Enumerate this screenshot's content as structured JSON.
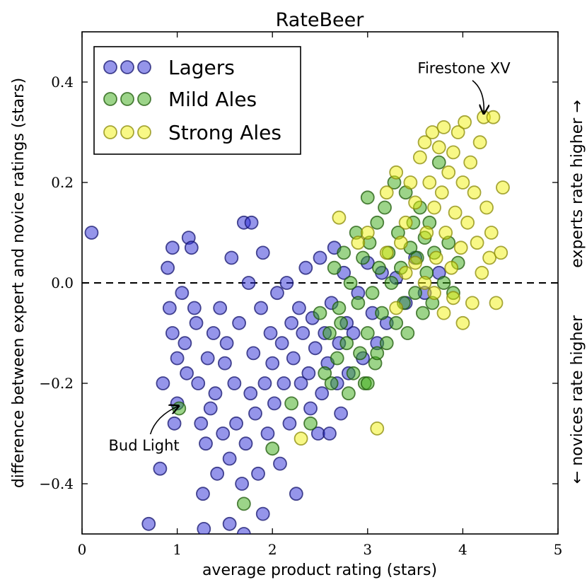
{
  "chart_data": {
    "type": "scatter",
    "title": "RateBeer",
    "xlabel": "average product rating (stars)",
    "ylabel": "difference between expert and novice ratings (stars)",
    "xlim": [
      0,
      5
    ],
    "ylim": [
      -0.5,
      0.5
    ],
    "xticks": [
      0,
      1,
      2,
      3,
      4,
      5
    ],
    "xtick_labels": [
      "0",
      "1",
      "2",
      "3",
      "4",
      "5"
    ],
    "yticks": [
      -0.4,
      -0.2,
      0.0,
      0.2,
      0.4
    ],
    "ytick_labels": [
      "−0.4",
      "−0.2",
      "0.0",
      "0.2",
      "0.4"
    ],
    "reference_line": {
      "y": 0.0,
      "style": "dashed"
    },
    "legend_position": "top-left",
    "right_labels": {
      "upper": "experts rate higher →",
      "lower": "← novices rate higher"
    },
    "annotations": [
      {
        "text": "Firestone XV",
        "point": [
          4.22,
          0.33
        ]
      },
      {
        "text": "Bud Light",
        "point": [
          1.0,
          -0.245
        ]
      }
    ],
    "series": [
      {
        "name": "Lagers",
        "color": "#2b2bd6",
        "edge": "#14146e",
        "points": [
          [
            0.1,
            0.1
          ],
          [
            0.7,
            -0.48
          ],
          [
            0.82,
            -0.37
          ],
          [
            0.85,
            -0.2
          ],
          [
            0.9,
            0.03
          ],
          [
            0.92,
            -0.05
          ],
          [
            0.95,
            0.07
          ],
          [
            0.95,
            -0.1
          ],
          [
            0.97,
            -0.28
          ],
          [
            1.0,
            -0.24
          ],
          [
            1.0,
            -0.15
          ],
          [
            1.05,
            -0.02
          ],
          [
            1.08,
            -0.12
          ],
          [
            1.1,
            -0.18
          ],
          [
            1.12,
            0.09
          ],
          [
            1.15,
            0.07
          ],
          [
            1.18,
            -0.05
          ],
          [
            1.2,
            -0.08
          ],
          [
            1.22,
            -0.2
          ],
          [
            1.25,
            -0.28
          ],
          [
            1.27,
            -0.42
          ],
          [
            1.28,
            -0.49
          ],
          [
            1.3,
            -0.32
          ],
          [
            1.32,
            -0.15
          ],
          [
            1.35,
            -0.25
          ],
          [
            1.38,
            -0.1
          ],
          [
            1.4,
            -0.22
          ],
          [
            1.42,
            -0.38
          ],
          [
            1.45,
            -0.05
          ],
          [
            1.48,
            -0.3
          ],
          [
            1.5,
            -0.16
          ],
          [
            1.52,
            -0.12
          ],
          [
            1.55,
            -0.35
          ],
          [
            1.55,
            -0.48
          ],
          [
            1.57,
            0.05
          ],
          [
            1.6,
            -0.2
          ],
          [
            1.62,
            -0.28
          ],
          [
            1.65,
            -0.08
          ],
          [
            1.68,
            -0.4
          ],
          [
            1.7,
            0.12
          ],
          [
            1.7,
            -0.5
          ],
          [
            1.72,
            -0.32
          ],
          [
            1.75,
            0.0
          ],
          [
            1.77,
            -0.22
          ],
          [
            1.78,
            0.12
          ],
          [
            1.8,
            -0.14
          ],
          [
            1.82,
            -0.26
          ],
          [
            1.85,
            -0.38
          ],
          [
            1.88,
            -0.05
          ],
          [
            1.9,
            -0.46
          ],
          [
            1.9,
            0.06
          ],
          [
            1.92,
            -0.2
          ],
          [
            1.95,
            -0.3
          ],
          [
            1.98,
            -0.1
          ],
          [
            2.0,
            -0.16
          ],
          [
            2.02,
            -0.24
          ],
          [
            2.05,
            -0.02
          ],
          [
            2.08,
            -0.36
          ],
          [
            2.1,
            -0.12
          ],
          [
            2.12,
            -0.2
          ],
          [
            2.15,
            0.0
          ],
          [
            2.18,
            -0.28
          ],
          [
            2.2,
            -0.08
          ],
          [
            2.22,
            -0.15
          ],
          [
            2.25,
            -0.42
          ],
          [
            2.28,
            -0.05
          ],
          [
            2.3,
            -0.2
          ],
          [
            2.32,
            -0.1
          ],
          [
            2.35,
            0.03
          ],
          [
            2.38,
            -0.18
          ],
          [
            2.4,
            -0.25
          ],
          [
            2.42,
            -0.07
          ],
          [
            2.45,
            -0.13
          ],
          [
            2.48,
            -0.3
          ],
          [
            2.5,
            0.05
          ],
          [
            2.52,
            -0.22
          ],
          [
            2.55,
            -0.1
          ],
          [
            2.58,
            -0.16
          ],
          [
            2.6,
            -0.3
          ],
          [
            2.62,
            -0.04
          ],
          [
            2.65,
            0.07
          ],
          [
            2.68,
            -0.2
          ],
          [
            2.7,
            -0.12
          ],
          [
            2.72,
            -0.26
          ],
          [
            2.75,
            0.02
          ],
          [
            2.78,
            -0.08
          ],
          [
            2.8,
            -0.18
          ],
          [
            2.85,
            -0.1
          ],
          [
            2.9,
            -0.02
          ],
          [
            2.95,
            -0.15
          ],
          [
            3.0,
            0.04
          ],
          [
            3.05,
            -0.06
          ],
          [
            3.1,
            -0.12
          ],
          [
            3.15,
            0.02
          ],
          [
            3.2,
            -0.08
          ],
          [
            3.3,
            0.01
          ],
          [
            3.4,
            -0.04
          ],
          [
            3.5,
            0.05
          ],
          [
            3.6,
            -0.02
          ],
          [
            3.75,
            0.02
          ]
        ]
      },
      {
        "name": "Mild Ales",
        "color": "#3aaa14",
        "edge": "#1d5a0a",
        "points": [
          [
            1.02,
            -0.25
          ],
          [
            1.7,
            -0.44
          ],
          [
            2.0,
            -0.33
          ],
          [
            2.2,
            -0.24
          ],
          [
            2.4,
            -0.28
          ],
          [
            2.5,
            -0.06
          ],
          [
            2.55,
            -0.18
          ],
          [
            2.6,
            -0.1
          ],
          [
            2.62,
            -0.2
          ],
          [
            2.65,
            0.03
          ],
          [
            2.68,
            -0.15
          ],
          [
            2.7,
            -0.05
          ],
          [
            2.72,
            -0.08
          ],
          [
            2.75,
            0.06
          ],
          [
            2.78,
            -0.12
          ],
          [
            2.8,
            -0.22
          ],
          [
            2.82,
            0.0
          ],
          [
            2.85,
            -0.18
          ],
          [
            2.88,
            0.1
          ],
          [
            2.9,
            -0.04
          ],
          [
            2.92,
            -0.14
          ],
          [
            2.95,
            0.05
          ],
          [
            2.97,
            -0.2
          ],
          [
            3.0,
            0.17
          ],
          [
            3.0,
            -0.1
          ],
          [
            3.02,
            0.08
          ],
          [
            3.05,
            -0.02
          ],
          [
            3.08,
            -0.16
          ],
          [
            3.1,
            0.12
          ],
          [
            3.12,
            0.03
          ],
          [
            3.15,
            -0.06
          ],
          [
            3.18,
            0.15
          ],
          [
            3.2,
            -0.12
          ],
          [
            3.22,
            0.06
          ],
          [
            3.25,
            0.0
          ],
          [
            3.28,
            0.2
          ],
          [
            3.3,
            -0.08
          ],
          [
            3.32,
            0.1
          ],
          [
            3.35,
            0.03
          ],
          [
            3.38,
            -0.04
          ],
          [
            3.4,
            0.18
          ],
          [
            3.42,
            -0.1
          ],
          [
            3.45,
            0.07
          ],
          [
            3.48,
            0.12
          ],
          [
            3.5,
            -0.02
          ],
          [
            3.52,
            0.05
          ],
          [
            3.55,
            0.15
          ],
          [
            3.58,
            -0.06
          ],
          [
            3.6,
            0.09
          ],
          [
            3.62,
            0.02
          ],
          [
            3.65,
            0.12
          ],
          [
            3.68,
            -0.04
          ],
          [
            3.7,
            0.06
          ],
          [
            3.75,
            0.24
          ],
          [
            3.8,
            0.0
          ],
          [
            3.85,
            0.08
          ],
          [
            3.9,
            -0.02
          ],
          [
            3.95,
            0.04
          ],
          [
            3.0,
            -0.2
          ],
          [
            3.1,
            -0.14
          ]
        ]
      },
      {
        "name": "Strong Ales",
        "color": "#f2f20e",
        "edge": "#8a8a08",
        "points": [
          [
            2.7,
            0.13
          ],
          [
            3.1,
            -0.29
          ],
          [
            2.3,
            -0.31
          ],
          [
            3.2,
            0.18
          ],
          [
            3.3,
            0.22
          ],
          [
            3.35,
            0.08
          ],
          [
            3.4,
            0.12
          ],
          [
            3.45,
            0.2
          ],
          [
            3.5,
            0.16
          ],
          [
            3.55,
            0.25
          ],
          [
            3.6,
            0.28
          ],
          [
            3.62,
            0.1
          ],
          [
            3.65,
            0.2
          ],
          [
            3.68,
            0.3
          ],
          [
            3.7,
            0.15
          ],
          [
            3.72,
            0.05
          ],
          [
            3.75,
            0.27
          ],
          [
            3.78,
            0.18
          ],
          [
            3.8,
            0.31
          ],
          [
            3.82,
            0.1
          ],
          [
            3.85,
            0.22
          ],
          [
            3.88,
            0.03
          ],
          [
            3.9,
            0.26
          ],
          [
            3.92,
            0.14
          ],
          [
            3.95,
            0.3
          ],
          [
            3.98,
            0.07
          ],
          [
            4.0,
            0.2
          ],
          [
            4.02,
            0.32
          ],
          [
            4.05,
            0.12
          ],
          [
            4.08,
            0.24
          ],
          [
            4.1,
            -0.04
          ],
          [
            4.12,
            0.18
          ],
          [
            4.15,
            0.08
          ],
          [
            4.18,
            0.28
          ],
          [
            4.2,
            0.02
          ],
          [
            4.22,
            0.33
          ],
          [
            4.25,
            0.15
          ],
          [
            4.28,
            0.05
          ],
          [
            4.3,
            0.1
          ],
          [
            4.32,
            0.33
          ],
          [
            4.35,
            -0.04
          ],
          [
            4.4,
            0.06
          ],
          [
            4.42,
            0.19
          ],
          [
            3.6,
            0.0
          ],
          [
            3.7,
            -0.02
          ],
          [
            3.8,
            -0.06
          ],
          [
            3.9,
            -0.03
          ],
          [
            4.0,
            -0.08
          ],
          [
            3.5,
            0.04
          ],
          [
            3.4,
            0.02
          ],
          [
            3.3,
            -0.05
          ],
          [
            3.2,
            0.06
          ],
          [
            3.0,
            0.1
          ],
          [
            2.9,
            0.08
          ]
        ]
      }
    ]
  }
}
